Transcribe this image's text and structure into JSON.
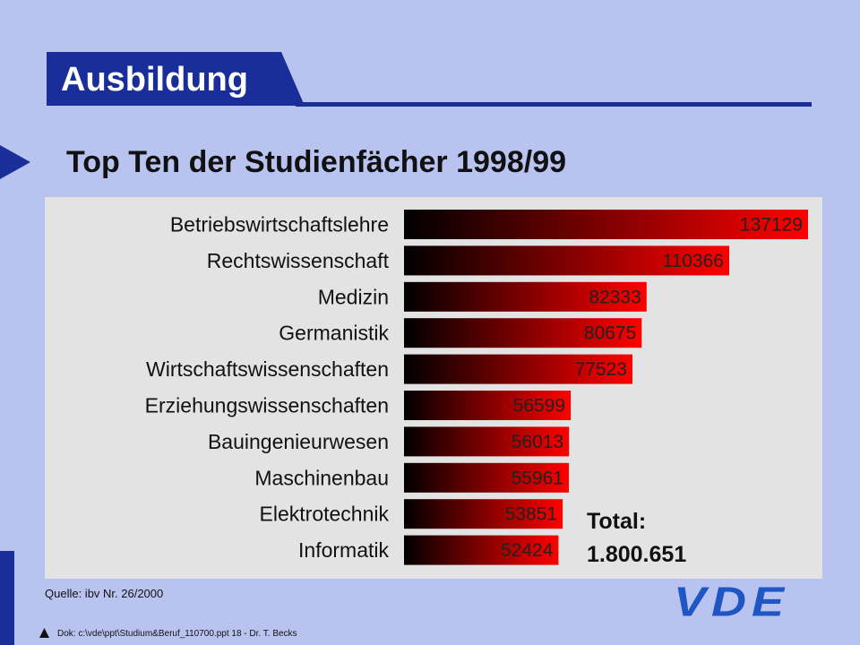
{
  "header": {
    "title": "Ausbildung"
  },
  "slide": {
    "subtitle": "Top Ten der Studienfächer 1998/99"
  },
  "chart_data": {
    "type": "bar",
    "orientation": "horizontal",
    "title": "Top Ten der Studienfächer 1998/99",
    "categories": [
      "Betriebswirtschaftslehre",
      "Rechtswissenschaft",
      "Medizin",
      "Germanistik",
      "Wirtschaftswissenschaften",
      "Erziehungswissenschaften",
      "Bauingenieurwesen",
      "Maschinenbau",
      "Elektrotechnik",
      "Informatik"
    ],
    "values": [
      137129,
      110366,
      82333,
      80675,
      77523,
      56599,
      56013,
      55961,
      53851,
      52424
    ],
    "value_labels": [
      "137129",
      "110366",
      "82333",
      "80675",
      "77523",
      "56599",
      "56013",
      "55961",
      "53851",
      "52424"
    ],
    "xlim": [
      0,
      137129
    ],
    "grid": false,
    "legend": "none",
    "bar_gradient": [
      "#000000",
      "#ff0000"
    ],
    "panel_color": "#e3e3e3",
    "total_label": "Total:",
    "total_value": "1.800.651"
  },
  "footer": {
    "source": "Quelle: ibv Nr. 26/2000",
    "document": "Dok: c:\\vde\\ppt\\Studium&Beruf_110700.ppt 18 - Dr. T. Becks",
    "logo_text": "VDE"
  },
  "colors": {
    "background": "#b8c4ef",
    "accent": "#1a2e9a",
    "logo": "#1f56c4"
  }
}
